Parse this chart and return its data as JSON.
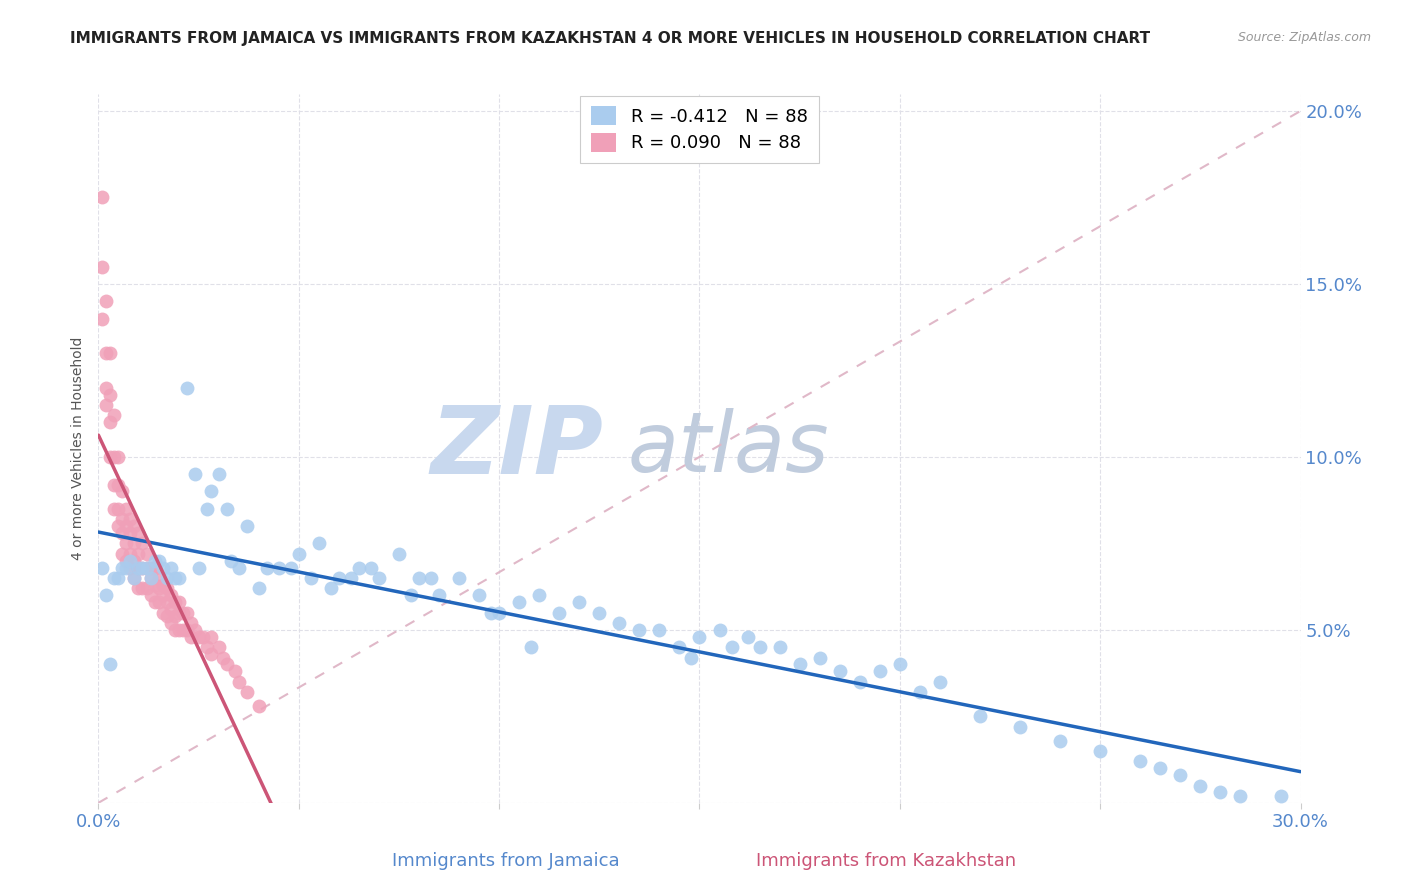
{
  "title": "IMMIGRANTS FROM JAMAICA VS IMMIGRANTS FROM KAZAKHSTAN 4 OR MORE VEHICLES IN HOUSEHOLD CORRELATION CHART",
  "source": "Source: ZipAtlas.com",
  "ylabel_left": "4 or more Vehicles in Household",
  "legend_jamaica": "Immigrants from Jamaica",
  "legend_kazakhstan": "Immigrants from Kazakhstan",
  "jamaica_R": -0.412,
  "jamaica_N": 88,
  "kazakhstan_R": 0.09,
  "kazakhstan_N": 88,
  "xlim": [
    0.0,
    0.3
  ],
  "ylim": [
    0.0,
    0.205
  ],
  "color_jamaica": "#aaccee",
  "color_kazakhstan": "#f0a0b8",
  "color_jamaica_line": "#2266bb",
  "color_kazakhstan_line": "#cc5577",
  "color_ref_line": "#e0b8c8",
  "watermark_zip": "ZIP",
  "watermark_atlas": "atlas",
  "watermark_color_zip": "#c8d8ee",
  "watermark_color_atlas": "#c0ccdd",
  "title_color": "#222222",
  "axis_label_color": "#5588cc",
  "grid_color": "#e0e0e8",
  "jamaica_x": [
    0.001,
    0.002,
    0.003,
    0.004,
    0.005,
    0.006,
    0.007,
    0.008,
    0.009,
    0.01,
    0.011,
    0.012,
    0.013,
    0.014,
    0.015,
    0.016,
    0.017,
    0.018,
    0.019,
    0.02,
    0.022,
    0.024,
    0.025,
    0.027,
    0.028,
    0.03,
    0.032,
    0.033,
    0.035,
    0.037,
    0.04,
    0.042,
    0.045,
    0.048,
    0.05,
    0.053,
    0.055,
    0.058,
    0.06,
    0.063,
    0.065,
    0.068,
    0.07,
    0.075,
    0.078,
    0.08,
    0.083,
    0.085,
    0.09,
    0.095,
    0.098,
    0.1,
    0.105,
    0.108,
    0.11,
    0.115,
    0.12,
    0.125,
    0.13,
    0.135,
    0.14,
    0.145,
    0.148,
    0.15,
    0.155,
    0.158,
    0.162,
    0.165,
    0.17,
    0.175,
    0.18,
    0.185,
    0.19,
    0.195,
    0.2,
    0.205,
    0.21,
    0.22,
    0.23,
    0.24,
    0.25,
    0.26,
    0.265,
    0.27,
    0.275,
    0.28,
    0.285,
    0.295
  ],
  "jamaica_y": [
    0.068,
    0.06,
    0.04,
    0.065,
    0.065,
    0.068,
    0.068,
    0.07,
    0.065,
    0.068,
    0.068,
    0.068,
    0.065,
    0.07,
    0.07,
    0.068,
    0.065,
    0.068,
    0.065,
    0.065,
    0.12,
    0.095,
    0.068,
    0.085,
    0.09,
    0.095,
    0.085,
    0.07,
    0.068,
    0.08,
    0.062,
    0.068,
    0.068,
    0.068,
    0.072,
    0.065,
    0.075,
    0.062,
    0.065,
    0.065,
    0.068,
    0.068,
    0.065,
    0.072,
    0.06,
    0.065,
    0.065,
    0.06,
    0.065,
    0.06,
    0.055,
    0.055,
    0.058,
    0.045,
    0.06,
    0.055,
    0.058,
    0.055,
    0.052,
    0.05,
    0.05,
    0.045,
    0.042,
    0.048,
    0.05,
    0.045,
    0.048,
    0.045,
    0.045,
    0.04,
    0.042,
    0.038,
    0.035,
    0.038,
    0.04,
    0.032,
    0.035,
    0.025,
    0.022,
    0.018,
    0.015,
    0.012,
    0.01,
    0.008,
    0.005,
    0.003,
    0.002,
    0.002
  ],
  "kazakhstan_x": [
    0.001,
    0.001,
    0.001,
    0.002,
    0.002,
    0.002,
    0.002,
    0.003,
    0.003,
    0.003,
    0.003,
    0.004,
    0.004,
    0.004,
    0.004,
    0.005,
    0.005,
    0.005,
    0.005,
    0.006,
    0.006,
    0.006,
    0.006,
    0.007,
    0.007,
    0.007,
    0.007,
    0.008,
    0.008,
    0.008,
    0.008,
    0.009,
    0.009,
    0.009,
    0.009,
    0.01,
    0.01,
    0.01,
    0.01,
    0.011,
    0.011,
    0.011,
    0.012,
    0.012,
    0.012,
    0.013,
    0.013,
    0.013,
    0.014,
    0.014,
    0.014,
    0.015,
    0.015,
    0.015,
    0.016,
    0.016,
    0.016,
    0.017,
    0.017,
    0.017,
    0.018,
    0.018,
    0.018,
    0.019,
    0.019,
    0.019,
    0.02,
    0.02,
    0.02,
    0.021,
    0.021,
    0.022,
    0.022,
    0.023,
    0.023,
    0.024,
    0.025,
    0.026,
    0.027,
    0.028,
    0.028,
    0.03,
    0.031,
    0.032,
    0.034,
    0.035,
    0.037,
    0.04
  ],
  "kazakhstan_y": [
    0.175,
    0.155,
    0.14,
    0.145,
    0.13,
    0.12,
    0.115,
    0.13,
    0.118,
    0.11,
    0.1,
    0.112,
    0.1,
    0.092,
    0.085,
    0.1,
    0.092,
    0.085,
    0.08,
    0.09,
    0.082,
    0.078,
    0.072,
    0.085,
    0.08,
    0.075,
    0.07,
    0.082,
    0.078,
    0.072,
    0.068,
    0.08,
    0.075,
    0.07,
    0.065,
    0.078,
    0.072,
    0.068,
    0.062,
    0.075,
    0.068,
    0.062,
    0.072,
    0.068,
    0.062,
    0.068,
    0.065,
    0.06,
    0.068,
    0.063,
    0.058,
    0.065,
    0.062,
    0.058,
    0.063,
    0.06,
    0.055,
    0.062,
    0.058,
    0.054,
    0.06,
    0.056,
    0.052,
    0.058,
    0.054,
    0.05,
    0.058,
    0.055,
    0.05,
    0.055,
    0.05,
    0.055,
    0.05,
    0.052,
    0.048,
    0.05,
    0.048,
    0.048,
    0.045,
    0.048,
    0.043,
    0.045,
    0.042,
    0.04,
    0.038,
    0.035,
    0.032,
    0.028
  ]
}
